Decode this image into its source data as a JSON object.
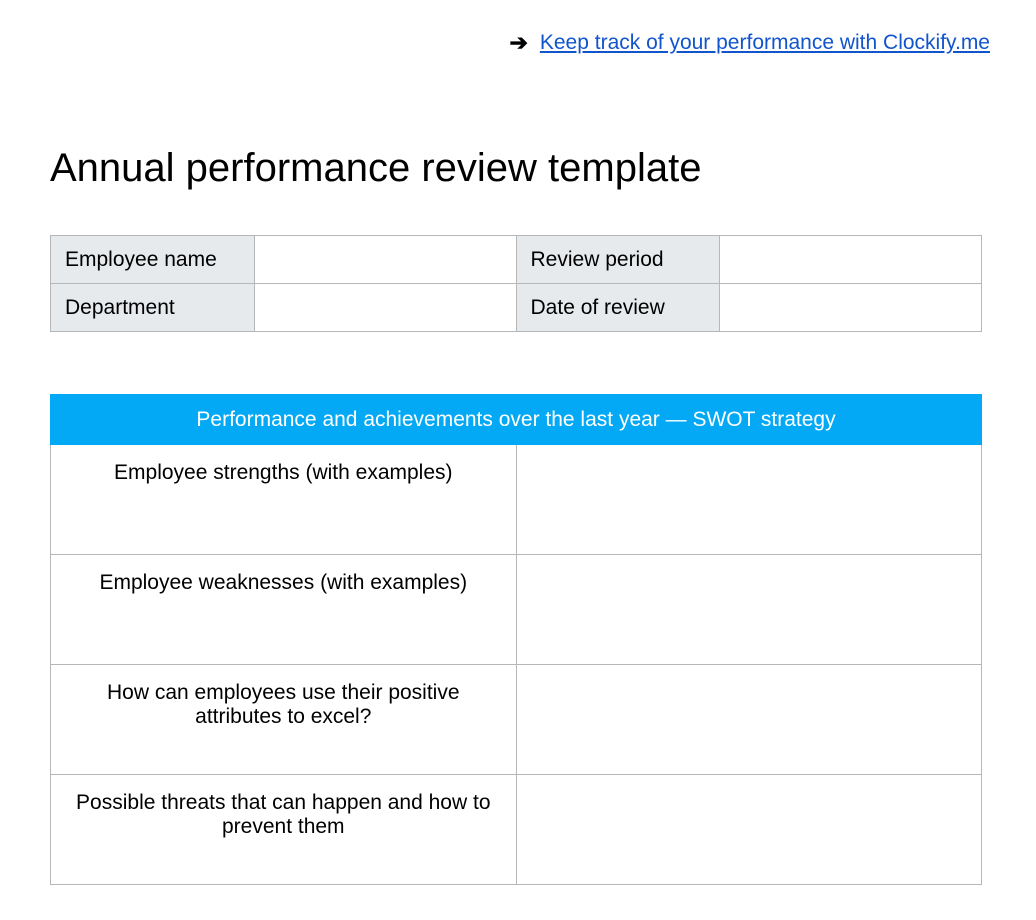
{
  "topLink": {
    "text": "Keep track of your performance with Clockify.me"
  },
  "title": "Annual performance review template",
  "infoTable": {
    "rows": [
      {
        "label1": "Employee name",
        "value1": "",
        "label2": "Review period",
        "value2": ""
      },
      {
        "label1": "Department",
        "value1": "",
        "label2": "Date of review",
        "value2": ""
      }
    ]
  },
  "swotTable": {
    "header": "Performance and achievements over the last year — SWOT strategy",
    "rows": [
      {
        "question": "Employee strengths (with examples)",
        "answer": ""
      },
      {
        "question": "Employee weaknesses (with examples)",
        "answer": ""
      },
      {
        "question": "How can employees use their positive attributes to excel?",
        "answer": ""
      },
      {
        "question": "Possible threats that can happen and how to prevent them",
        "answer": ""
      }
    ]
  },
  "colors": {
    "headerBg": "#03a9f4",
    "headerText": "#ffffff",
    "labelBg": "#e6eaed",
    "border": "#b7b7b7",
    "linkColor": "#1155cc",
    "textColor": "#000000"
  }
}
